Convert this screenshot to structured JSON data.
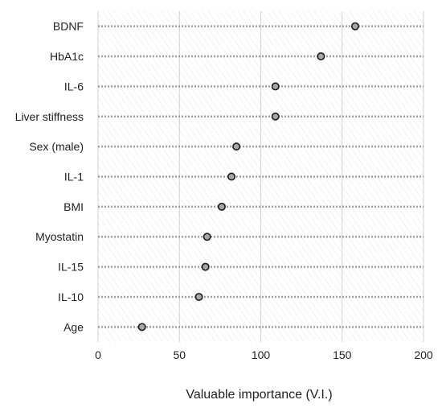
{
  "chart_data": {
    "type": "dot",
    "title": "",
    "xlabel": "Valuable importance (V.I.)",
    "ylabel": "",
    "xlim": [
      0,
      200
    ],
    "xticks": [
      0,
      50,
      100,
      150,
      200
    ],
    "grid": true,
    "categories": [
      "BDNF",
      "HbA1c",
      "IL-6",
      "Liver stiffness",
      "Sex (male)",
      "IL-1",
      "BMI",
      "Myostatin",
      "IL-15",
      "IL-10",
      "Age"
    ],
    "values": [
      158,
      137,
      109,
      109,
      85,
      82,
      76,
      67,
      66,
      62,
      27
    ],
    "colors": {
      "marker_fill": "#a6a6a6",
      "marker_stroke": "#1a1a1a",
      "dotted_line": "#a0a0a0",
      "grid": "#d0d0d0",
      "band_hatch": "#e2e2e2"
    }
  }
}
